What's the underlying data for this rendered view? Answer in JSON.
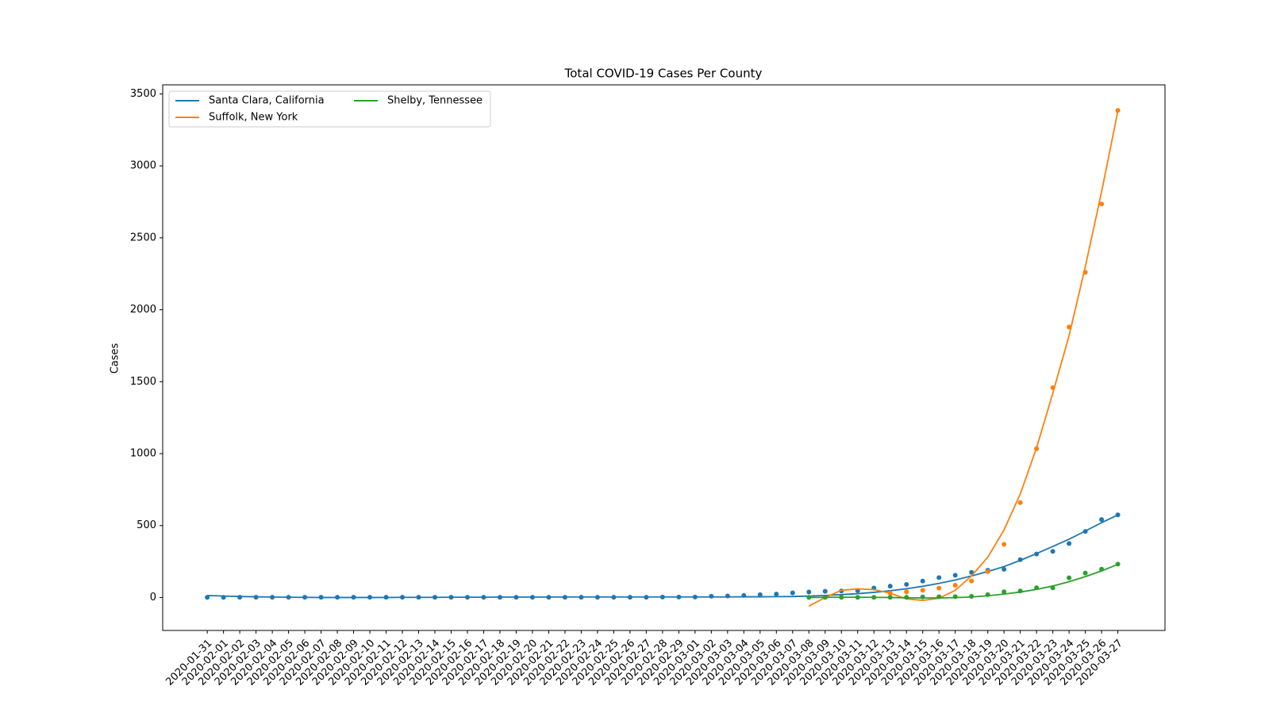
{
  "chart_data": {
    "type": "line",
    "title": "Total COVID-19 Cases Per County",
    "y_label": "Cases",
    "categories": [
      "2020-01-31",
      "2020-02-01",
      "2020-02-02",
      "2020-02-03",
      "2020-02-04",
      "2020-02-05",
      "2020-02-06",
      "2020-02-07",
      "2020-02-08",
      "2020-02-09",
      "2020-02-10",
      "2020-02-11",
      "2020-02-12",
      "2020-02-13",
      "2020-02-14",
      "2020-02-15",
      "2020-02-16",
      "2020-02-17",
      "2020-02-18",
      "2020-02-19",
      "2020-02-20",
      "2020-02-21",
      "2020-02-22",
      "2020-02-23",
      "2020-02-24",
      "2020-02-25",
      "2020-02-26",
      "2020-02-27",
      "2020-02-28",
      "2020-02-29",
      "2020-03-01",
      "2020-03-02",
      "2020-03-03",
      "2020-03-04",
      "2020-03-05",
      "2020-03-06",
      "2020-03-07",
      "2020-03-08",
      "2020-03-09",
      "2020-03-10",
      "2020-03-11",
      "2020-03-12",
      "2020-03-13",
      "2020-03-14",
      "2020-03-15",
      "2020-03-16",
      "2020-03-17",
      "2020-03-18",
      "2020-03-19",
      "2020-03-20",
      "2020-03-21",
      "2020-03-22",
      "2020-03-23",
      "2020-03-24",
      "2020-03-25",
      "2020-03-26",
      "2020-03-27"
    ],
    "series": [
      {
        "name": "Santa Clara, California",
        "color": "#1f77b4",
        "values": [
          1,
          1,
          2,
          2,
          2,
          2,
          2,
          2,
          2,
          2,
          2,
          2,
          2,
          2,
          2,
          2,
          2,
          2,
          2,
          2,
          2,
          2,
          2,
          2,
          2,
          2,
          2,
          2,
          3,
          3,
          3,
          9,
          11,
          14,
          20,
          24,
          32,
          38,
          43,
          45,
          48,
          66,
          79,
          91,
          114,
          138,
          155,
          175,
          189,
          196,
          263,
          302,
          321,
          375,
          459,
          542,
          574
        ],
        "fit": [
          14,
          10,
          7,
          5,
          3,
          2,
          1,
          0,
          0,
          0,
          0,
          0,
          1,
          1,
          1,
          2,
          2,
          2,
          3,
          3,
          3,
          3,
          4,
          4,
          4,
          4,
          4,
          4,
          4,
          4,
          4,
          4,
          4,
          5,
          5,
          6,
          7,
          10,
          14,
          20,
          27,
          36,
          47,
          61,
          78,
          98,
          122,
          150,
          180,
          215,
          258,
          305,
          355,
          405,
          462,
          520,
          574
        ]
      },
      {
        "name": "Suffolk, New York",
        "color": "#ff7f0e",
        "values": [
          null,
          null,
          null,
          null,
          null,
          null,
          null,
          null,
          null,
          null,
          null,
          null,
          null,
          null,
          null,
          null,
          null,
          null,
          null,
          null,
          null,
          null,
          null,
          null,
          null,
          null,
          null,
          null,
          null,
          null,
          null,
          null,
          null,
          null,
          null,
          null,
          null,
          null,
          null,
          null,
          null,
          null,
          30,
          40,
          50,
          65,
          85,
          115,
          180,
          370,
          660,
          1034,
          1458,
          1880,
          2260,
          2735,
          3385
        ],
        "fit": [
          null,
          null,
          null,
          null,
          null,
          null,
          null,
          null,
          null,
          null,
          null,
          null,
          null,
          null,
          null,
          null,
          null,
          null,
          null,
          null,
          null,
          null,
          null,
          null,
          null,
          null,
          null,
          null,
          null,
          null,
          null,
          null,
          null,
          null,
          null,
          null,
          null,
          -60,
          0,
          50,
          60,
          55,
          30,
          -10,
          -20,
          -5,
          50,
          150,
          280,
          470,
          720,
          1040,
          1420,
          1820,
          2300,
          2820,
          3380
        ]
      },
      {
        "name": "Shelby, Tennessee",
        "color": "#2ca02c",
        "values": [
          null,
          null,
          null,
          null,
          null,
          null,
          null,
          null,
          null,
          null,
          null,
          null,
          null,
          null,
          null,
          null,
          null,
          null,
          null,
          null,
          null,
          null,
          null,
          null,
          null,
          null,
          null,
          null,
          null,
          null,
          null,
          null,
          null,
          null,
          null,
          null,
          null,
          1,
          1,
          1,
          1,
          1,
          1,
          2,
          4,
          5,
          6,
          8,
          20,
          40,
          45,
          68,
          67,
          137,
          170,
          197,
          232
        ],
        "fit": [
          null,
          null,
          null,
          null,
          null,
          null,
          null,
          null,
          null,
          null,
          null,
          null,
          null,
          null,
          null,
          null,
          null,
          null,
          null,
          null,
          null,
          null,
          null,
          null,
          null,
          null,
          null,
          null,
          null,
          null,
          null,
          null,
          null,
          null,
          null,
          null,
          null,
          0,
          1,
          2,
          2,
          1,
          0,
          -2,
          -3,
          -3,
          -1,
          4,
          12,
          24,
          38,
          56,
          80,
          110,
          145,
          185,
          230
        ]
      }
    ],
    "ylim": [
      -229,
      3563
    ],
    "yticks": [
      0,
      500,
      1000,
      1500,
      2000,
      2500,
      3000,
      3500
    ],
    "legend": "upper left"
  }
}
